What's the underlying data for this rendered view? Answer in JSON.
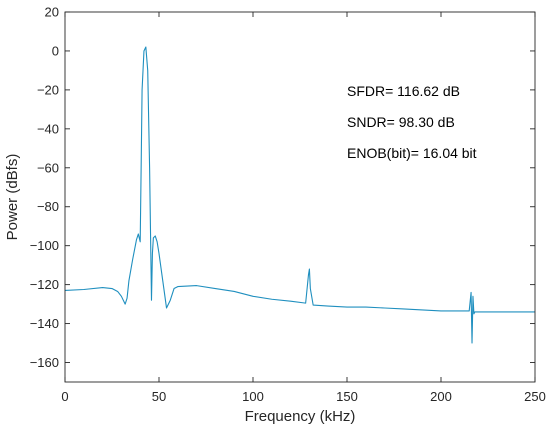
{
  "chart_data": {
    "type": "line",
    "title": "",
    "xlabel": "Frequency (kHz)",
    "ylabel": "Power (dBfs)",
    "xlim": [
      0,
      250
    ],
    "ylim": [
      -170,
      20
    ],
    "x_ticks": [
      0,
      50,
      100,
      150,
      200,
      250
    ],
    "y_ticks": [
      20,
      0,
      -20,
      -40,
      -60,
      -80,
      -100,
      -120,
      -140,
      -160
    ],
    "x_tick_labels": [
      "0",
      "50",
      "100",
      "150",
      "200",
      "250"
    ],
    "y_tick_labels": [
      "20",
      "0",
      "−20",
      "−40",
      "−60",
      "−80",
      "−100",
      "−120",
      "−140",
      "−160"
    ],
    "grid": false,
    "legend": "none",
    "line_color": "#1f8fbf",
    "annotations": [
      "SFDR= 116.62 dB",
      "SNDR= 98.30 dB",
      "ENOB(bit)= 16.04 bit"
    ],
    "series": [
      {
        "x": [
          0,
          10,
          20,
          25,
          28,
          30,
          32,
          33,
          34,
          36,
          38,
          39,
          40,
          40.5,
          41,
          42,
          43,
          44,
          45,
          46,
          46.5,
          47,
          48,
          49,
          50,
          52,
          54,
          56,
          58,
          60,
          70,
          80,
          90,
          100,
          110,
          120,
          128,
          129.5,
          130,
          130.5,
          132,
          140,
          150,
          160,
          170,
          180,
          190,
          200,
          210,
          215,
          216,
          216.5,
          217,
          217.5,
          218,
          220,
          230,
          240,
          250
        ],
        "y": [
          -123,
          -122.5,
          -121.5,
          -122,
          -123.5,
          -126,
          -130,
          -127,
          -118,
          -107,
          -97,
          -94,
          -98,
          -60,
          -20,
          0,
          2,
          -10,
          -60,
          -128,
          -104,
          -96,
          -95,
          -98,
          -104,
          -118,
          -132,
          -128,
          -122,
          -121,
          -120.5,
          -122,
          -123.5,
          -126,
          -127.5,
          -128.5,
          -129.5,
          -115,
          -112,
          -122,
          -130.5,
          -131,
          -131.5,
          -131.5,
          -132,
          -132.5,
          -133,
          -133.5,
          -133.5,
          -133.5,
          -124,
          -150,
          -126,
          -135,
          -134,
          -134,
          -134,
          -134,
          -134
        ]
      }
    ]
  }
}
